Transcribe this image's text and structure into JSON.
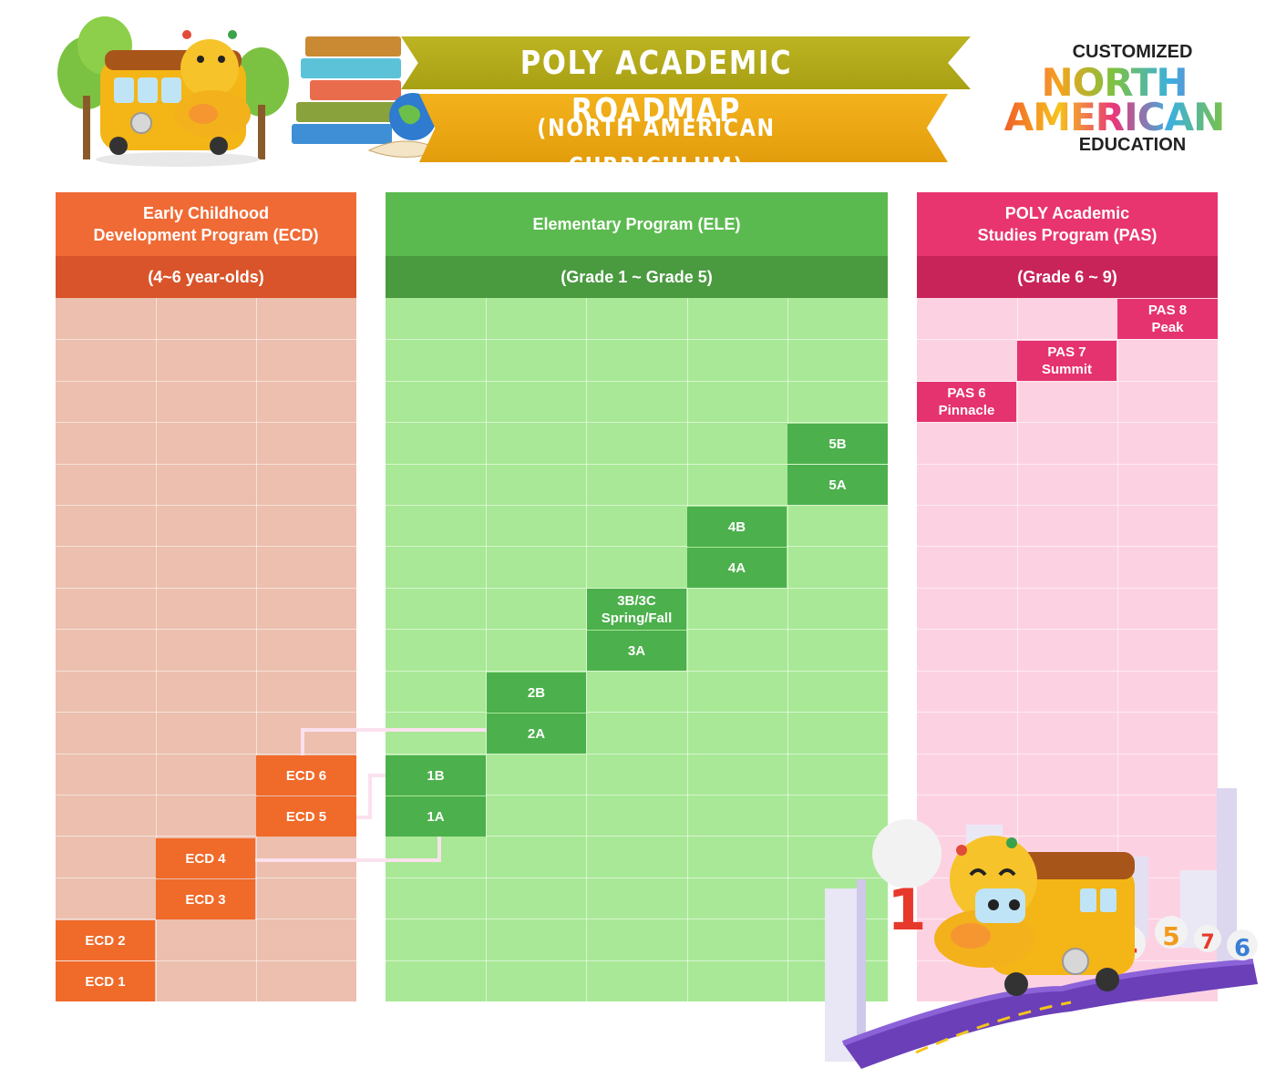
{
  "header": {
    "title": "POLY ACADEMIC ROADMAP",
    "subtitle": "(NORTH AMERICAN CURRICULUM)"
  },
  "brand": {
    "line1": "CUSTOMIZED",
    "line2": "NORTH",
    "line3": "AMERICAN",
    "line4": "EDUCATION"
  },
  "columns": {
    "ecd": {
      "title": "Early Childhood\nDevelopment Program (ECD)",
      "range": "(4~6 year-olds)"
    },
    "ele": {
      "title": "Elementary Program (ELE)",
      "range": "(Grade 1 ~ Grade 5)"
    },
    "pas": {
      "title": "POLY Academic\nStudies Program (PAS)",
      "range": "(Grade 6 ~ 9)"
    }
  },
  "levels": {
    "ecd1": "ECD 1",
    "ecd2": "ECD 2",
    "ecd3": "ECD 3",
    "ecd4": "ECD 4",
    "ecd5": "ECD 5",
    "ecd6": "ECD 6",
    "ele1a": "1A",
    "ele1b": "1B",
    "ele2a": "2A",
    "ele2b": "2B",
    "ele3a": "3A",
    "ele3bc": "3B/3C\nSpring/Fall",
    "ele4a": "4A",
    "ele4b": "4B",
    "ele5a": "5A",
    "ele5b": "5B",
    "pas6": "PAS 6\nPinnacle",
    "pas7": "PAS 7\nSummit",
    "pas8": "PAS 8\nPeak"
  },
  "illustration": {
    "road_numbers": [
      "1",
      "4",
      "5",
      "7",
      "6"
    ]
  },
  "colors": {
    "ecd_header": "#f06a35",
    "ecd_subheader": "#d9542a",
    "ecd_grid": "#ecbfae",
    "ecd_level": "#f06a2a",
    "ele_header": "#5bba4f",
    "ele_subheader": "#4a9a40",
    "ele_grid": "#a8e896",
    "ele_level": "#4cb04c",
    "pas_header": "#e8356f",
    "pas_subheader": "#c8245a",
    "pas_grid": "#fcd2e3",
    "pas_level": "#e5336f",
    "banner_top": "#b3aa19",
    "banner_bottom": "#eaa612"
  }
}
